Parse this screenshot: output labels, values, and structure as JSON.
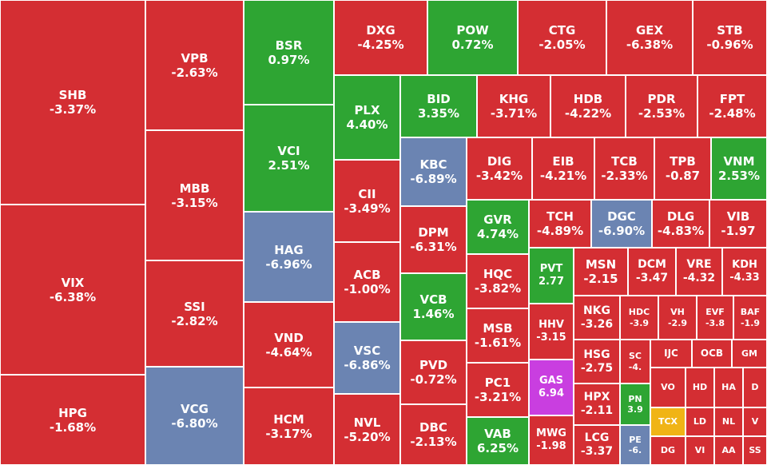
{
  "colors": {
    "down": "#d42e33",
    "up": "#2ea533",
    "floor": "#6b84b2",
    "ceiling": "#c93ee0",
    "reference": "#f0b416"
  },
  "chart_data": {
    "type": "treemap",
    "title": "",
    "tiles": [
      {
        "ticker": "SHB",
        "change": "-3.37%",
        "status": "down"
      },
      {
        "ticker": "VIX",
        "change": "-6.38%",
        "status": "down"
      },
      {
        "ticker": "HPG",
        "change": "-1.68%",
        "status": "down"
      },
      {
        "ticker": "VPB",
        "change": "-2.63%",
        "status": "down"
      },
      {
        "ticker": "MBB",
        "change": "-3.15%",
        "status": "down"
      },
      {
        "ticker": "SSI",
        "change": "-2.82%",
        "status": "down"
      },
      {
        "ticker": "VCG",
        "change": "-6.80%",
        "status": "floor"
      },
      {
        "ticker": "BSR",
        "change": "0.97%",
        "status": "up"
      },
      {
        "ticker": "VCI",
        "change": "2.51%",
        "status": "up"
      },
      {
        "ticker": "HAG",
        "change": "-6.96%",
        "status": "floor"
      },
      {
        "ticker": "VND",
        "change": "-4.64%",
        "status": "down"
      },
      {
        "ticker": "HCM",
        "change": "-3.17%",
        "status": "down"
      },
      {
        "ticker": "DXG",
        "change": "-4.25%",
        "status": "down"
      },
      {
        "ticker": "POW",
        "change": "0.72%",
        "status": "up"
      },
      {
        "ticker": "CTG",
        "change": "-2.05%",
        "status": "down"
      },
      {
        "ticker": "GEX",
        "change": "-6.38%",
        "status": "down"
      },
      {
        "ticker": "STB",
        "change": "-0.96%",
        "status": "down"
      },
      {
        "ticker": "PLX",
        "change": "4.40%",
        "status": "up"
      },
      {
        "ticker": "BID",
        "change": "3.35%",
        "status": "up"
      },
      {
        "ticker": "KHG",
        "change": "-3.71%",
        "status": "down"
      },
      {
        "ticker": "HDB",
        "change": "-4.22%",
        "status": "down"
      },
      {
        "ticker": "PDR",
        "change": "-2.53%",
        "status": "down"
      },
      {
        "ticker": "FPT",
        "change": "-2.48%",
        "status": "down"
      },
      {
        "ticker": "CII",
        "change": "-3.49%",
        "status": "down"
      },
      {
        "ticker": "ACB",
        "change": "-1.00%",
        "status": "down"
      },
      {
        "ticker": "VSC",
        "change": "-6.86%",
        "status": "floor"
      },
      {
        "ticker": "NVL",
        "change": "-5.20%",
        "status": "down"
      },
      {
        "ticker": "KBC",
        "change": "-6.89%",
        "status": "floor"
      },
      {
        "ticker": "DPM",
        "change": "-6.31%",
        "status": "down"
      },
      {
        "ticker": "VCB",
        "change": "1.46%",
        "status": "up"
      },
      {
        "ticker": "PVD",
        "change": "-0.72%",
        "status": "down"
      },
      {
        "ticker": "DBC",
        "change": "-2.13%",
        "status": "down"
      },
      {
        "ticker": "DIG",
        "change": "-3.42%",
        "status": "down"
      },
      {
        "ticker": "EIB",
        "change": "-4.21%",
        "status": "down"
      },
      {
        "ticker": "TCB",
        "change": "-2.33%",
        "status": "down"
      },
      {
        "ticker": "TPB",
        "change": "-0.87",
        "status": "down"
      },
      {
        "ticker": "VNM",
        "change": "2.53%",
        "status": "up"
      },
      {
        "ticker": "GVR",
        "change": "4.74%",
        "status": "up"
      },
      {
        "ticker": "HQC",
        "change": "-3.82%",
        "status": "down"
      },
      {
        "ticker": "MSB",
        "change": "-1.61%",
        "status": "down"
      },
      {
        "ticker": "PC1",
        "change": "-3.21%",
        "status": "down"
      },
      {
        "ticker": "VAB",
        "change": "6.25%",
        "status": "up"
      },
      {
        "ticker": "TCH",
        "change": "-4.89%",
        "status": "down"
      },
      {
        "ticker": "DGC",
        "change": "-6.90%",
        "status": "floor"
      },
      {
        "ticker": "DLG",
        "change": "-4.83%",
        "status": "down"
      },
      {
        "ticker": "VIB",
        "change": "-1.97",
        "status": "down"
      },
      {
        "ticker": "PVT",
        "change": "2.77",
        "status": "up"
      },
      {
        "ticker": "HHV",
        "change": "-3.15",
        "status": "down"
      },
      {
        "ticker": "GAS",
        "change": "6.94",
        "status": "ceiling"
      },
      {
        "ticker": "MWG",
        "change": "-1.98",
        "status": "down"
      },
      {
        "ticker": "MSN",
        "change": "-2.15",
        "status": "down"
      },
      {
        "ticker": "DCM",
        "change": "-3.47",
        "status": "down"
      },
      {
        "ticker": "VRE",
        "change": "-4.32",
        "status": "down"
      },
      {
        "ticker": "KDH",
        "change": "-4.33",
        "status": "down"
      },
      {
        "ticker": "NKG",
        "change": "-3.26",
        "status": "down"
      },
      {
        "ticker": "HDC",
        "change": "-3.9",
        "status": "down"
      },
      {
        "ticker": "VH",
        "change": "-2.9",
        "status": "down"
      },
      {
        "ticker": "EVF",
        "change": "-3.8",
        "status": "down"
      },
      {
        "ticker": "BAF",
        "change": "-1.9",
        "status": "down"
      },
      {
        "ticker": "HSG",
        "change": "-2.75",
        "status": "down"
      },
      {
        "ticker": "HPX",
        "change": "-2.11",
        "status": "down"
      },
      {
        "ticker": "LCG",
        "change": "-3.37",
        "status": "down"
      },
      {
        "ticker": "SC",
        "change": "-4.",
        "status": "down"
      },
      {
        "ticker": "PN",
        "change": "3.9",
        "status": "up"
      },
      {
        "ticker": "PE",
        "change": "-6.",
        "status": "floor"
      },
      {
        "ticker": "IJC",
        "change": "",
        "status": "down"
      },
      {
        "ticker": "OCB",
        "change": "",
        "status": "down"
      },
      {
        "ticker": "GM",
        "change": "",
        "status": "down"
      },
      {
        "ticker": "VO",
        "change": "",
        "status": "down"
      },
      {
        "ticker": "HD",
        "change": "",
        "status": "down"
      },
      {
        "ticker": "HA",
        "change": "",
        "status": "down"
      },
      {
        "ticker": "D",
        "change": "",
        "status": "down"
      },
      {
        "ticker": "TCX",
        "change": "",
        "status": "reference"
      },
      {
        "ticker": "LD",
        "change": "",
        "status": "down"
      },
      {
        "ticker": "NL",
        "change": "",
        "status": "down"
      },
      {
        "ticker": "V",
        "change": "",
        "status": "down"
      },
      {
        "ticker": "DG",
        "change": "",
        "status": "down"
      },
      {
        "ticker": "VI",
        "change": "",
        "status": "down"
      },
      {
        "ticker": "AA",
        "change": "",
        "status": "down"
      },
      {
        "ticker": "SS",
        "change": "",
        "status": "down"
      }
    ]
  }
}
